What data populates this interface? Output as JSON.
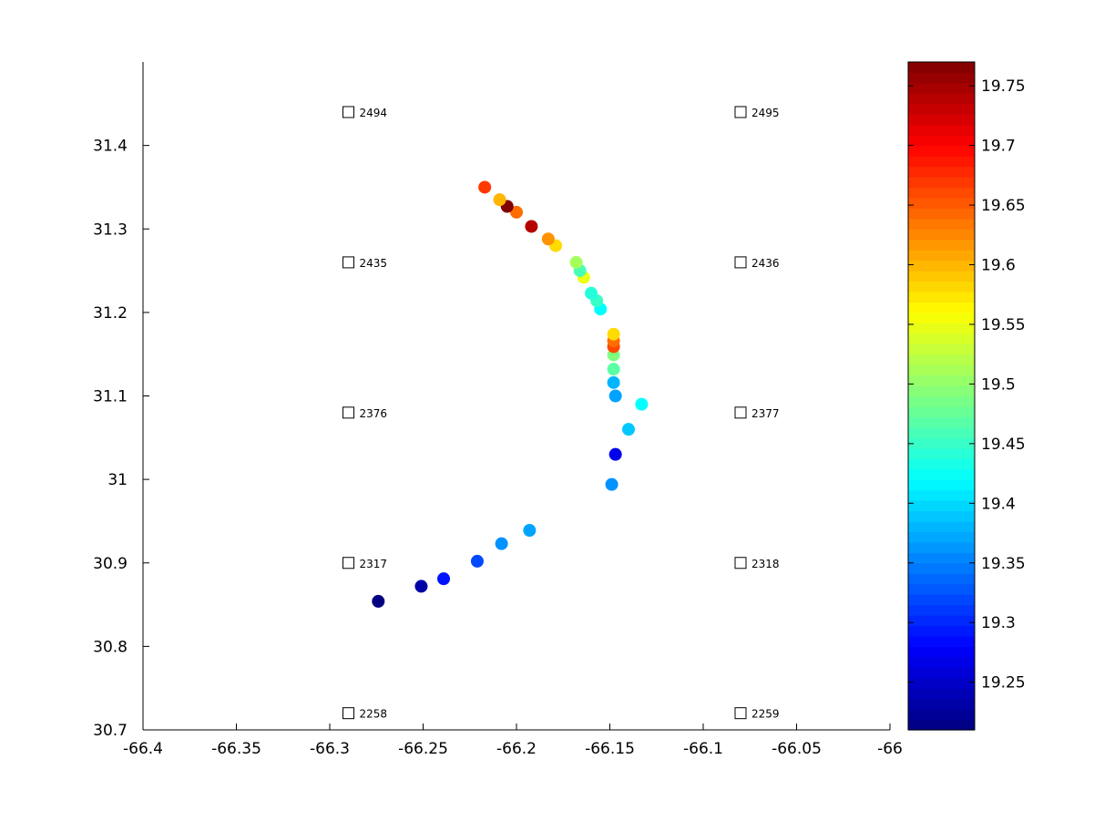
{
  "chart_data": {
    "type": "scatter",
    "title": "",
    "xlabel": "",
    "ylabel": "",
    "xlim": [
      -66.4,
      -66.0
    ],
    "ylim": [
      30.7,
      31.5
    ],
    "xticks": [
      -66.4,
      -66.35,
      -66.3,
      -66.25,
      -66.2,
      -66.15,
      -66.1,
      -66.05,
      -66.0
    ],
    "xtick_labels": [
      "-66.4",
      "-66.35",
      "-66.3",
      "-66.25",
      "-66.2",
      "-66.15",
      "-66.1",
      "-66.05",
      "-66"
    ],
    "yticks": [
      30.7,
      30.8,
      30.9,
      31.0,
      31.1,
      31.2,
      31.3,
      31.4
    ],
    "ytick_labels": [
      "30.7",
      "30.8",
      "30.9",
      "31",
      "31.1",
      "31.2",
      "31.3",
      "31.4"
    ],
    "grid": false,
    "colormap": "jet",
    "clim": [
      19.21,
      19.77
    ],
    "colorbar_ticks": [
      19.25,
      19.3,
      19.35,
      19.4,
      19.45,
      19.5,
      19.55,
      19.6,
      19.65,
      19.7,
      19.75
    ],
    "colorbar_tick_labels": [
      "19.25",
      "19.3",
      "19.35",
      "19.4",
      "19.45",
      "19.5",
      "19.55",
      "19.6",
      "19.65",
      "19.7",
      "19.75"
    ],
    "points": [
      {
        "x": -66.274,
        "y": 30.854,
        "value": 19.21
      },
      {
        "x": -66.251,
        "y": 30.872,
        "value": 19.23
      },
      {
        "x": -66.239,
        "y": 30.881,
        "value": 19.29
      },
      {
        "x": -66.221,
        "y": 30.902,
        "value": 19.32
      },
      {
        "x": -66.208,
        "y": 30.923,
        "value": 19.36
      },
      {
        "x": -66.193,
        "y": 30.939,
        "value": 19.37
      },
      {
        "x": -66.149,
        "y": 30.994,
        "value": 19.36
      },
      {
        "x": -66.147,
        "y": 31.03,
        "value": 19.27
      },
      {
        "x": -66.14,
        "y": 31.06,
        "value": 19.39
      },
      {
        "x": -66.133,
        "y": 31.09,
        "value": 19.42
      },
      {
        "x": -66.147,
        "y": 31.1,
        "value": 19.37
      },
      {
        "x": -66.148,
        "y": 31.116,
        "value": 19.38
      },
      {
        "x": -66.148,
        "y": 31.132,
        "value": 19.47
      },
      {
        "x": -66.148,
        "y": 31.149,
        "value": 19.49
      },
      {
        "x": -66.148,
        "y": 31.159,
        "value": 19.66
      },
      {
        "x": -66.148,
        "y": 31.166,
        "value": 19.64
      },
      {
        "x": -66.148,
        "y": 31.174,
        "value": 19.58
      },
      {
        "x": -66.155,
        "y": 31.204,
        "value": 19.42
      },
      {
        "x": -66.157,
        "y": 31.214,
        "value": 19.45
      },
      {
        "x": -66.16,
        "y": 31.223,
        "value": 19.44
      },
      {
        "x": -66.164,
        "y": 31.242,
        "value": 19.55
      },
      {
        "x": -66.166,
        "y": 31.25,
        "value": 19.46
      },
      {
        "x": -66.168,
        "y": 31.26,
        "value": 19.51
      },
      {
        "x": -66.179,
        "y": 31.28,
        "value": 19.58
      },
      {
        "x": -66.183,
        "y": 31.288,
        "value": 19.62
      },
      {
        "x": -66.192,
        "y": 31.303,
        "value": 19.74
      },
      {
        "x": -66.2,
        "y": 31.32,
        "value": 19.64
      },
      {
        "x": -66.205,
        "y": 31.327,
        "value": 19.77
      },
      {
        "x": -66.209,
        "y": 31.335,
        "value": 19.6
      },
      {
        "x": -66.217,
        "y": 31.35,
        "value": 19.67
      }
    ],
    "stations": [
      {
        "label": "2494",
        "x": -66.29,
        "y": 31.44
      },
      {
        "label": "2495",
        "x": -66.08,
        "y": 31.44
      },
      {
        "label": "2435",
        "x": -66.29,
        "y": 31.26
      },
      {
        "label": "2436",
        "x": -66.08,
        "y": 31.26
      },
      {
        "label": "2376",
        "x": -66.29,
        "y": 31.08
      },
      {
        "label": "2377",
        "x": -66.08,
        "y": 31.08
      },
      {
        "label": "2317",
        "x": -66.29,
        "y": 30.9
      },
      {
        "label": "2318",
        "x": -66.08,
        "y": 30.9
      },
      {
        "label": "2258",
        "x": -66.29,
        "y": 30.72
      },
      {
        "label": "2259",
        "x": -66.08,
        "y": 30.72
      }
    ]
  }
}
